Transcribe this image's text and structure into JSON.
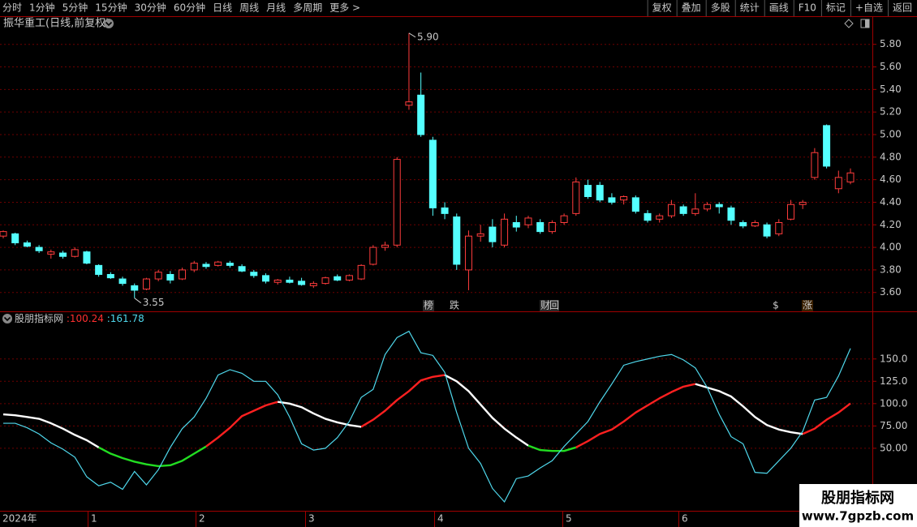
{
  "toolbar": {
    "periods": [
      "分时",
      "1分钟",
      "5分钟",
      "15分钟",
      "30分钟",
      "60分钟",
      "日线",
      "周线",
      "月线",
      "多周期",
      "更多 >"
    ],
    "active": "日线",
    "buttons": [
      "复权",
      "叠加",
      "多股",
      "统计",
      "画线",
      "F10",
      "标记",
      "+自选",
      "返回"
    ]
  },
  "events": [
    "榜",
    "跌",
    "财",
    "回",
    "$",
    "涨"
  ],
  "x_axis_labels": [
    "2024年",
    "1",
    "2",
    "3",
    "4",
    "5",
    "6"
  ],
  "watermark": {
    "title": "股朋指标网",
    "url": "www.7gpzb.com"
  },
  "chart_data": [
    {
      "type": "candlestick",
      "title": "振华重工(日线,前复权)",
      "open": [
        4.1,
        4.12,
        4.04,
        4.0,
        3.94,
        3.95,
        3.92,
        3.96,
        3.84,
        3.76,
        3.72,
        3.66,
        3.63,
        3.72,
        3.76,
        3.72,
        3.8,
        3.85,
        3.84,
        3.86,
        3.83,
        3.78,
        3.75,
        3.69,
        3.71,
        3.7,
        3.66,
        3.68,
        3.74,
        3.71,
        3.72,
        3.85,
        4.0,
        4.02,
        5.26,
        5.35,
        4.95,
        4.35,
        4.27,
        3.8,
        4.1,
        4.18,
        4.02,
        4.22,
        4.2,
        4.22,
        4.14,
        4.22,
        4.3,
        4.55,
        4.55,
        4.44,
        4.42,
        4.44,
        4.3,
        4.25,
        4.28,
        4.36,
        4.3,
        4.34,
        4.38,
        4.35,
        4.22,
        4.19,
        4.2,
        4.12,
        4.25,
        4.38,
        4.62,
        5.08,
        4.52,
        4.58
      ],
      "high": [
        4.15,
        4.13,
        4.06,
        4.02,
        3.98,
        3.97,
        4.0,
        3.97,
        3.85,
        3.78,
        3.74,
        3.68,
        3.73,
        3.8,
        3.79,
        3.82,
        3.88,
        3.87,
        3.88,
        3.88,
        3.85,
        3.8,
        3.77,
        3.72,
        3.74,
        3.73,
        3.7,
        3.74,
        3.76,
        3.76,
        3.85,
        4.02,
        4.05,
        4.8,
        5.9,
        5.55,
        4.98,
        4.4,
        4.3,
        4.15,
        4.2,
        4.25,
        4.3,
        4.28,
        4.28,
        4.25,
        4.24,
        4.3,
        4.62,
        4.6,
        4.58,
        4.48,
        4.46,
        4.46,
        4.33,
        4.3,
        4.42,
        4.38,
        4.48,
        4.4,
        4.4,
        4.37,
        4.24,
        4.24,
        4.22,
        4.25,
        4.42,
        4.42,
        4.88,
        5.09,
        4.68,
        4.7
      ],
      "low": [
        4.08,
        4.02,
        4.0,
        3.95,
        3.9,
        3.9,
        3.91,
        3.85,
        3.74,
        3.72,
        3.66,
        3.55,
        3.62,
        3.7,
        3.68,
        3.71,
        3.78,
        3.81,
        3.83,
        3.82,
        3.78,
        3.73,
        3.68,
        3.67,
        3.68,
        3.66,
        3.64,
        3.67,
        3.7,
        3.7,
        3.71,
        3.84,
        3.97,
        4.0,
        5.22,
        4.98,
        4.28,
        4.25,
        3.8,
        3.62,
        4.05,
        4.0,
        4.0,
        4.14,
        4.17,
        4.12,
        4.12,
        4.2,
        4.28,
        4.43,
        4.4,
        4.38,
        4.38,
        4.3,
        4.22,
        4.22,
        4.26,
        4.28,
        4.28,
        4.32,
        4.3,
        4.2,
        4.17,
        4.18,
        4.08,
        4.1,
        4.24,
        4.34,
        4.6,
        4.7,
        4.48,
        4.56
      ],
      "close": [
        4.14,
        4.04,
        4.01,
        3.97,
        3.96,
        3.92,
        3.98,
        3.86,
        3.76,
        3.73,
        3.68,
        3.62,
        3.72,
        3.78,
        3.71,
        3.8,
        3.86,
        3.83,
        3.87,
        3.84,
        3.79,
        3.75,
        3.7,
        3.71,
        3.69,
        3.67,
        3.68,
        3.73,
        3.71,
        3.75,
        3.84,
        4.0,
        4.02,
        4.78,
        5.29,
        5.0,
        4.35,
        4.3,
        3.85,
        4.1,
        4.12,
        4.05,
        4.25,
        4.18,
        4.26,
        4.14,
        4.22,
        4.28,
        4.58,
        4.45,
        4.42,
        4.4,
        4.45,
        4.32,
        4.24,
        4.28,
        4.38,
        4.3,
        4.34,
        4.38,
        4.36,
        4.24,
        4.19,
        4.22,
        4.1,
        4.22,
        4.38,
        4.4,
        4.84,
        4.72,
        4.62,
        4.66
      ],
      "up_color": "#ff3c3c",
      "down_color": "#54ffff",
      "ylim": [
        3.44,
        5.92
      ],
      "yticks": [
        {
          "value": 3.6,
          "label": "3.60"
        },
        {
          "value": 3.8,
          "label": "3.80"
        },
        {
          "value": 4.0,
          "label": "4.00"
        },
        {
          "value": 4.2,
          "label": "4.20"
        },
        {
          "value": 4.4,
          "label": "4.40"
        },
        {
          "value": 4.6,
          "label": "4.60"
        },
        {
          "value": 4.8,
          "label": "4.80"
        },
        {
          "value": 5.0,
          "label": "5.00"
        },
        {
          "value": 5.2,
          "label": "5.20"
        },
        {
          "value": 5.4,
          "label": "5.40"
        },
        {
          "value": 5.6,
          "label": "5.60"
        },
        {
          "value": 5.8,
          "label": "5.80"
        }
      ],
      "grid": true,
      "annotations": [
        {
          "value": 5.9,
          "label": "5.90"
        },
        {
          "value": 3.55,
          "label": "3.55"
        }
      ]
    },
    {
      "type": "line",
      "title": "股朋指标网",
      "separator": ":",
      "series": [
        {
          "values": [
            88,
            87,
            85,
            83,
            78,
            72,
            65,
            59,
            51,
            44,
            39,
            35,
            32,
            30,
            31,
            36,
            44,
            52,
            62,
            73,
            86,
            92,
            98,
            102,
            100,
            96,
            89,
            83,
            79,
            76,
            74,
            82,
            92,
            104,
            114,
            126,
            130,
            132,
            125,
            114,
            99,
            84,
            72,
            62,
            53,
            48,
            47,
            47,
            51,
            58,
            66,
            71,
            80,
            90,
            98,
            106,
            113,
            119,
            122,
            118,
            114,
            108,
            97,
            85,
            76,
            71,
            68,
            66,
            72,
            82,
            90,
            100.24
          ],
          "up_color": "#ff2020",
          "down_color": "#ffffff",
          "low_color": "#22dd22",
          "low_level": 50
        },
        {
          "values": [
            78,
            78,
            73,
            66,
            56,
            49,
            40,
            18,
            8,
            12,
            4,
            24,
            9,
            26,
            51,
            72,
            85,
            106,
            132,
            138,
            134,
            125,
            125,
            110,
            85,
            55,
            48,
            50,
            62,
            80,
            107,
            116,
            155,
            174,
            181,
            157,
            154,
            135,
            90,
            50,
            33,
            5,
            -10,
            16,
            19,
            28,
            36,
            52,
            66,
            80,
            102,
            122,
            143,
            147,
            150,
            153,
            155,
            149,
            140,
            118,
            88,
            63,
            55,
            23,
            22,
            36,
            50,
            69,
            104,
            107,
            131,
            161.78
          ],
          "color": "#4fd8ec"
        }
      ],
      "ylim": [
        -20,
        187
      ],
      "yticks": [
        {
          "value": 50,
          "label": "50.00"
        },
        {
          "value": 75,
          "label": "75.00"
        },
        {
          "value": 100,
          "label": "100.0"
        },
        {
          "value": 125,
          "label": "125.0"
        },
        {
          "value": 150,
          "label": "150.0"
        }
      ],
      "grid": true
    }
  ]
}
